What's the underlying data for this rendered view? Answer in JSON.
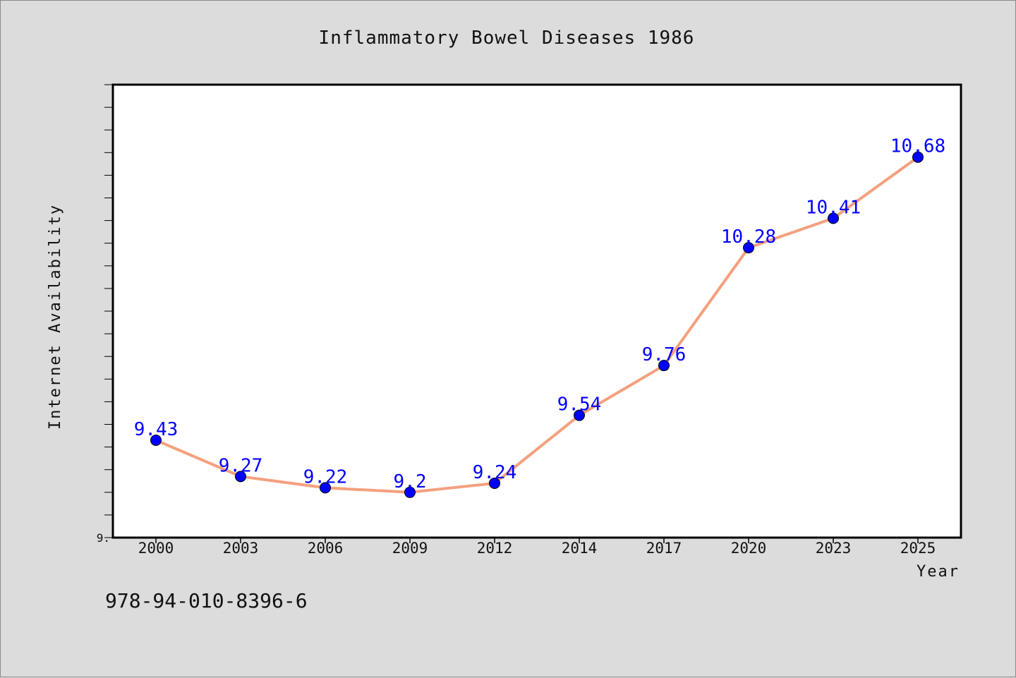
{
  "chart_data": {
    "type": "line",
    "title": "Inflammatory Bowel Diseases 1986",
    "xlabel": "Year",
    "ylabel": "Internet Availability",
    "categories": [
      "2000",
      "2003",
      "2006",
      "2009",
      "2012",
      "2014",
      "2017",
      "2020",
      "2023",
      "2025"
    ],
    "values": [
      9.43,
      9.27,
      9.22,
      9.2,
      9.24,
      9.54,
      9.76,
      10.28,
      10.41,
      10.68
    ],
    "data_labels": [
      "9.43",
      "9.27",
      "9.22",
      "9.2",
      "9.24",
      "9.54",
      "9.76",
      "10.28",
      "10.41",
      "10.68"
    ],
    "ylim": [
      9.0,
      11.0
    ],
    "y_tick_labels": [
      "9."
    ],
    "line_color": "#f4a07e",
    "marker_color": "#0000ff",
    "label_color": "#0000ff",
    "grid": false,
    "legend": "none"
  },
  "footer": {
    "code": "978-94-010-8396-6"
  }
}
